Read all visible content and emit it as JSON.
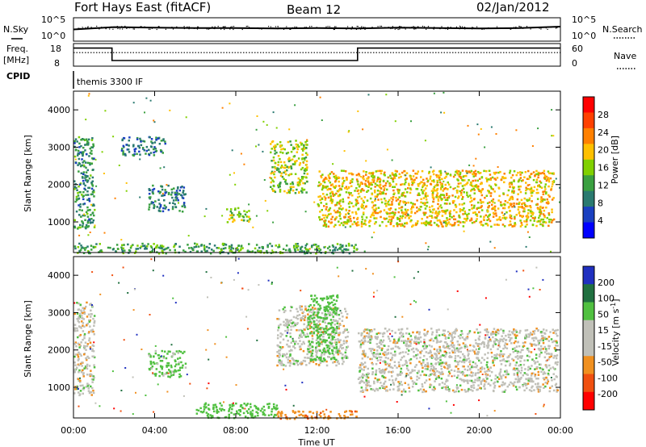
{
  "header": {
    "station": "Fort Hays East (fitACF)",
    "beam": "Beam 12",
    "date": "02/Jan/2012"
  },
  "top_panels": {
    "nsky_label": "N.Sky",
    "nsearch_label": "N.Search",
    "noise_ticks": [
      "10^5",
      "10^0"
    ],
    "freq_label": "Freq.",
    "freq_unit": "[MHz]",
    "freq_ticks": [
      "18",
      "8"
    ],
    "nave_label": "Nave",
    "nave_ticks": [
      "60",
      "0"
    ],
    "cpid_label": "CPID",
    "cpid_value": "themis 3300 IF"
  },
  "colorbars": {
    "power": {
      "label": "Power [dB]",
      "ticks": [
        "28",
        "24",
        "20",
        "16",
        "12",
        "8",
        "4"
      ],
      "colors": [
        "#ff0000",
        "#ff4000",
        "#ff8000",
        "#ffc000",
        "#80d000",
        "#3aa040",
        "#2a7a70",
        "#1a40c0",
        "#0000ff"
      ]
    },
    "velocity": {
      "label_main": "Velocity [m s",
      "label_sup": "-1",
      "label_end": "]",
      "ticks": [
        "200",
        "100",
        "50",
        "15",
        "-15",
        "-50",
        "-100",
        "-200"
      ],
      "colors": [
        "#2030c0",
        "#207040",
        "#50c040",
        "#c0c0b8",
        "#c0c0b8",
        "#f09020",
        "#f05010",
        "#ff0000"
      ]
    }
  },
  "chart_data": [
    {
      "type": "line",
      "title": "Fort Hays East (fitACF)",
      "xlabel": "",
      "ylabel": "N.Sky",
      "note": "noise level panel, log scale 10^0 to 10^5",
      "x": [
        "00:00",
        "02:00",
        "04:00",
        "06:00",
        "08:00",
        "10:00",
        "12:00",
        "14:00",
        "16:00",
        "18:00",
        "20:00",
        "22:00",
        "24:00"
      ],
      "series": [
        {
          "name": "N.Sky",
          "values": [
            2.5,
            3.0,
            2.9,
            2.8,
            2.8,
            2.7,
            2.8,
            2.7,
            2.9,
            2.8,
            2.7,
            2.8,
            3.1
          ]
        }
      ]
    },
    {
      "type": "line",
      "ylabel": "Freq. [MHz]",
      "x": [
        "00:00",
        "01:54",
        "01:54",
        "14:00",
        "14:00",
        "24:00"
      ],
      "ylim": [
        8,
        18
      ],
      "series": [
        {
          "name": "Freq.",
          "values": [
            16,
            16,
            10.5,
            10.5,
            16,
            16
          ]
        },
        {
          "name": "Nave",
          "values": [
            14,
            14,
            14,
            14,
            14,
            14
          ]
        }
      ]
    },
    {
      "type": "heatmap",
      "xlabel": "",
      "ylabel": "Slant Range [km]",
      "colorbar": "Power [dB]",
      "xlim": [
        "00:00",
        "24:00"
      ],
      "ylim": [
        180,
        4500
      ],
      "yticks": [
        1000,
        2000,
        3000,
        4000
      ],
      "features": [
        {
          "t_start": "00:00",
          "t_end": "01:00",
          "r_low": 800,
          "r_high": 3300,
          "power_db": 10
        },
        {
          "t_start": "02:20",
          "t_end": "04:30",
          "r_low": 2800,
          "r_high": 3300,
          "power_db": 8
        },
        {
          "t_start": "03:40",
          "t_end": "05:30",
          "r_low": 1300,
          "r_high": 2000,
          "power_db": 8
        },
        {
          "t_start": "07:30",
          "t_end": "08:40",
          "r_low": 1000,
          "r_high": 1400,
          "power_db": 16
        },
        {
          "t_start": "09:40",
          "t_end": "11:30",
          "r_low": 1800,
          "r_high": 3200,
          "power_db": 16
        },
        {
          "t_start": "12:00",
          "t_end": "23:40",
          "r_low": 900,
          "r_high": 2400,
          "power_db": 20
        },
        {
          "t_start": "00:00",
          "t_end": "14:00",
          "r_low": 180,
          "r_high": 450,
          "power_db": 12
        }
      ]
    },
    {
      "type": "heatmap",
      "xlabel": "Time UT",
      "ylabel": "Slant Range [km]",
      "colorbar": "Velocity [m s-1]",
      "xlim": [
        "00:00",
        "24:00"
      ],
      "ylim": [
        180,
        4500
      ],
      "xticks": [
        "00:00",
        "04:00",
        "08:00",
        "12:00",
        "16:00",
        "20:00",
        "00:00"
      ],
      "yticks": [
        1000,
        2000,
        3000,
        4000
      ],
      "features": [
        {
          "t_start": "00:00",
          "t_end": "01:00",
          "r_low": 800,
          "r_high": 3300,
          "velocity_ms": 0
        },
        {
          "t_start": "03:40",
          "t_end": "05:30",
          "r_low": 1300,
          "r_high": 2000,
          "velocity_ms": 30
        },
        {
          "t_start": "10:00",
          "t_end": "13:30",
          "r_low": 1600,
          "r_high": 3200,
          "velocity_ms": 0
        },
        {
          "t_start": "11:30",
          "t_end": "13:00",
          "r_low": 1700,
          "r_high": 3500,
          "velocity_ms": 50
        },
        {
          "t_start": "14:00",
          "t_end": "23:50",
          "r_low": 900,
          "r_high": 2600,
          "velocity_ms": 0
        },
        {
          "t_start": "06:00",
          "t_end": "10:00",
          "r_low": 200,
          "r_high": 600,
          "velocity_ms": 40
        },
        {
          "t_start": "10:00",
          "t_end": "14:00",
          "r_low": 180,
          "r_high": 400,
          "velocity_ms": -60
        }
      ]
    }
  ]
}
